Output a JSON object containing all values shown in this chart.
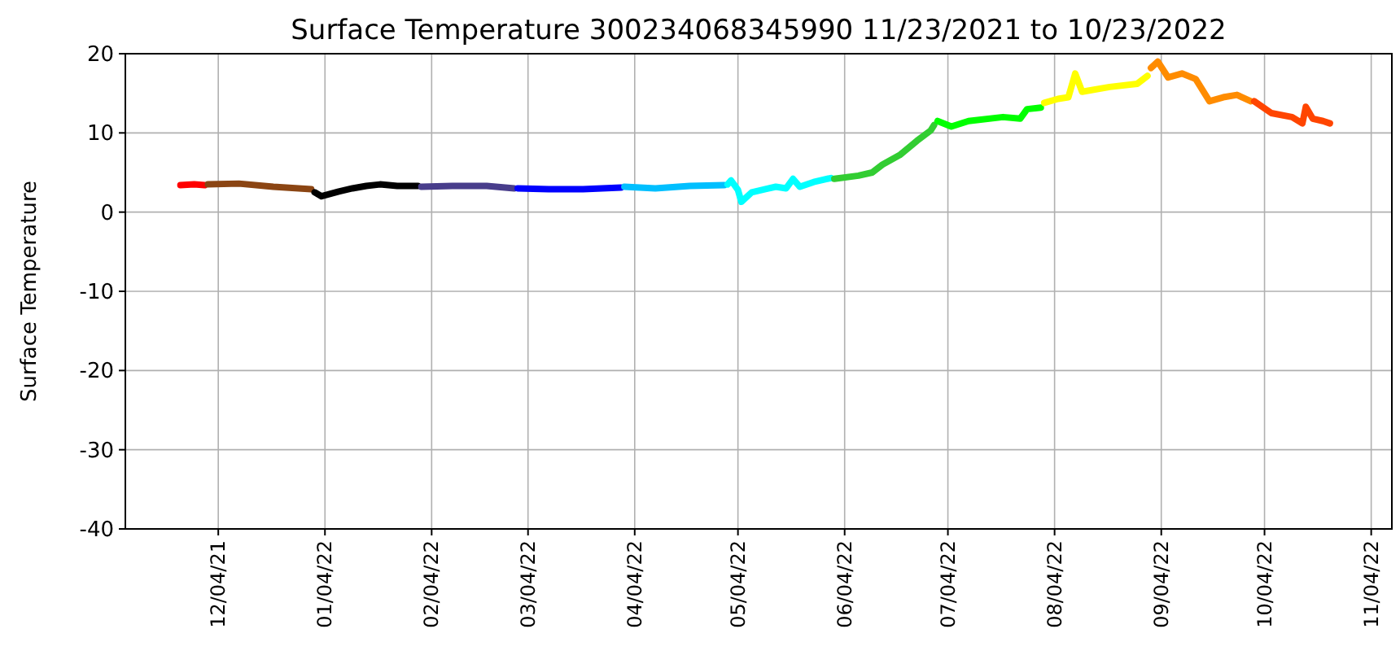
{
  "chart_data": {
    "type": "line",
    "title": "Surface Temperature 300234068345990  11/23/2021 to 10/23/2022",
    "ylabel": "Surface Temperature",
    "xlim": [
      "2021-11-07",
      "2022-11-10"
    ],
    "ylim": [
      -40,
      20
    ],
    "yticks": [
      -40,
      -30,
      -20,
      -10,
      0,
      10,
      20
    ],
    "xticks": [
      {
        "value": "2021-12-04",
        "label": "12/04/21"
      },
      {
        "value": "2022-01-04",
        "label": "01/04/22"
      },
      {
        "value": "2022-02-04",
        "label": "02/04/22"
      },
      {
        "value": "2022-03-04",
        "label": "03/04/22"
      },
      {
        "value": "2022-04-04",
        "label": "04/04/22"
      },
      {
        "value": "2022-05-04",
        "label": "05/04/22"
      },
      {
        "value": "2022-06-04",
        "label": "06/04/22"
      },
      {
        "value": "2022-07-04",
        "label": "07/04/22"
      },
      {
        "value": "2022-08-04",
        "label": "08/04/22"
      },
      {
        "value": "2022-09-04",
        "label": "09/04/22"
      },
      {
        "value": "2022-10-04",
        "label": "10/04/22"
      },
      {
        "value": "2022-11-04",
        "label": "11/04/22"
      }
    ],
    "grid": true,
    "marker": "none",
    "line_style": "solid",
    "series": [
      {
        "color": "#ff0000",
        "x": [
          "2021-11-23",
          "2021-11-27",
          "2021-11-30"
        ],
        "values": [
          3.4,
          3.5,
          3.4
        ]
      },
      {
        "color": "#8b4513",
        "x": [
          "2021-12-01",
          "2021-12-10",
          "2021-12-20",
          "2021-12-31"
        ],
        "values": [
          3.5,
          3.6,
          3.2,
          2.9
        ]
      },
      {
        "color": "#000000",
        "x": [
          "2022-01-01",
          "2022-01-03",
          "2022-01-08",
          "2022-01-12",
          "2022-01-16",
          "2022-01-20",
          "2022-01-25",
          "2022-01-31"
        ],
        "values": [
          2.5,
          2.0,
          2.6,
          3.0,
          3.3,
          3.5,
          3.3,
          3.3
        ]
      },
      {
        "color": "#483d8b",
        "x": [
          "2022-02-01",
          "2022-02-10",
          "2022-02-20",
          "2022-02-28"
        ],
        "values": [
          3.2,
          3.3,
          3.3,
          3.0
        ]
      },
      {
        "color": "#0000ff",
        "x": [
          "2022-03-01",
          "2022-03-10",
          "2022-03-20",
          "2022-03-31"
        ],
        "values": [
          3.0,
          2.9,
          2.9,
          3.1
        ]
      },
      {
        "color": "#00bfff",
        "x": [
          "2022-04-01",
          "2022-04-10",
          "2022-04-20",
          "2022-04-30"
        ],
        "values": [
          3.2,
          3.0,
          3.3,
          3.4
        ]
      },
      {
        "color": "#00ffff",
        "x": [
          "2022-05-01",
          "2022-05-02",
          "2022-05-04",
          "2022-05-05",
          "2022-05-08",
          "2022-05-12",
          "2022-05-15",
          "2022-05-18",
          "2022-05-20",
          "2022-05-22",
          "2022-05-26",
          "2022-05-31"
        ],
        "values": [
          3.5,
          4.0,
          2.8,
          1.3,
          2.5,
          2.9,
          3.2,
          3.0,
          4.2,
          3.2,
          3.8,
          4.3
        ]
      },
      {
        "color": "#32cd32",
        "x": [
          "2022-06-01",
          "2022-06-08",
          "2022-06-12",
          "2022-06-15",
          "2022-06-20",
          "2022-06-25",
          "2022-06-29",
          "2022-06-30"
        ],
        "values": [
          4.2,
          4.6,
          5.0,
          6.0,
          7.2,
          9.0,
          10.3,
          11.0
        ]
      },
      {
        "color": "#00ff00",
        "x": [
          "2022-07-01",
          "2022-07-05",
          "2022-07-10",
          "2022-07-20",
          "2022-07-25",
          "2022-07-27",
          "2022-07-31"
        ],
        "values": [
          11.5,
          10.8,
          11.5,
          12.0,
          11.8,
          13.0,
          13.2
        ]
      },
      {
        "color": "#ffff00",
        "x": [
          "2022-08-01",
          "2022-08-05",
          "2022-08-08",
          "2022-08-10",
          "2022-08-12",
          "2022-08-20",
          "2022-08-28",
          "2022-08-31"
        ],
        "values": [
          13.8,
          14.3,
          14.5,
          17.5,
          15.2,
          15.8,
          16.2,
          17.2
        ]
      },
      {
        "color": "#ff8c00",
        "x": [
          "2022-09-01",
          "2022-09-03",
          "2022-09-06",
          "2022-09-10",
          "2022-09-14",
          "2022-09-18",
          "2022-09-22",
          "2022-09-26",
          "2022-09-30"
        ],
        "values": [
          18.2,
          19.0,
          17.0,
          17.5,
          16.8,
          14.0,
          14.5,
          14.8,
          14.0
        ]
      },
      {
        "color": "#ff4500",
        "x": [
          "2022-10-01",
          "2022-10-06",
          "2022-10-12",
          "2022-10-15",
          "2022-10-16",
          "2022-10-18",
          "2022-10-21",
          "2022-10-23"
        ],
        "values": [
          14.0,
          12.5,
          12.0,
          11.2,
          13.3,
          11.8,
          11.5,
          11.2
        ]
      }
    ]
  }
}
